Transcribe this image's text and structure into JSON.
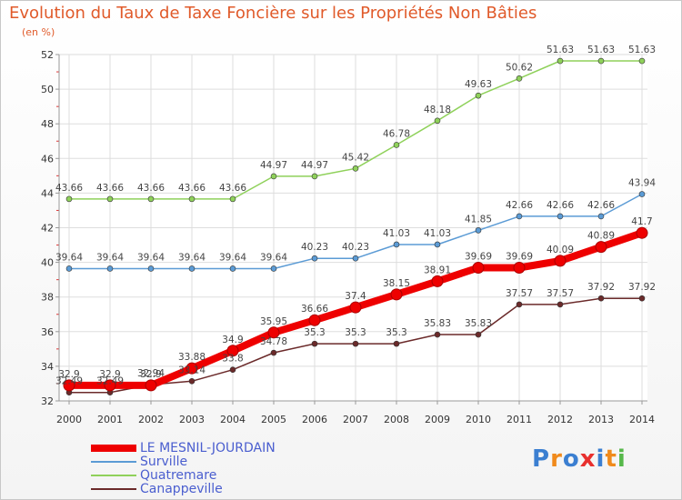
{
  "title": "Evolution du Taux de Taxe Foncière sur les Propriétés Non Bâties",
  "unit_label": "(en %)",
  "logo": "Proxiti",
  "chart_data": {
    "type": "line",
    "title": "Evolution du Taux de Taxe Foncière sur les Propriétés Non Bâties",
    "ylabel": "(en %)",
    "xlabel": "",
    "ylim": [
      32,
      52
    ],
    "yticks": [
      32,
      34,
      36,
      38,
      40,
      42,
      44,
      46,
      48,
      50,
      52
    ],
    "grid": true,
    "legend_position": "bottom-left",
    "x": [
      "2000",
      "2001",
      "2002",
      "2003",
      "2004",
      "2005",
      "2006",
      "2007",
      "2008",
      "2009",
      "2010",
      "2011",
      "2012",
      "2013",
      "2014"
    ],
    "series": [
      {
        "name": "LE MESNIL-JOURDAIN",
        "color": "#ee0000",
        "values": [
          32.9,
          32.9,
          32.9,
          33.88,
          34.9,
          35.95,
          36.66,
          37.4,
          38.15,
          38.91,
          39.69,
          39.69,
          40.09,
          40.89,
          41.7
        ]
      },
      {
        "name": "Surville",
        "color": "#5b9bd5",
        "values": [
          39.64,
          39.64,
          39.64,
          39.64,
          39.64,
          39.64,
          40.23,
          40.23,
          41.03,
          41.03,
          41.85,
          42.66,
          42.66,
          42.66,
          43.94
        ]
      },
      {
        "name": "Quatremare",
        "color": "#8fd15a",
        "values": [
          43.66,
          43.66,
          43.66,
          43.66,
          43.66,
          44.97,
          44.97,
          45.42,
          46.78,
          48.18,
          49.63,
          50.62,
          51.63,
          51.63,
          51.63
        ]
      },
      {
        "name": "Canappeville",
        "color": "#6b2a2a",
        "values": [
          32.49,
          32.49,
          32.94,
          33.14,
          33.8,
          34.78,
          35.3,
          35.3,
          35.3,
          35.83,
          35.83,
          37.57,
          37.57,
          37.92,
          37.92
        ]
      }
    ]
  }
}
